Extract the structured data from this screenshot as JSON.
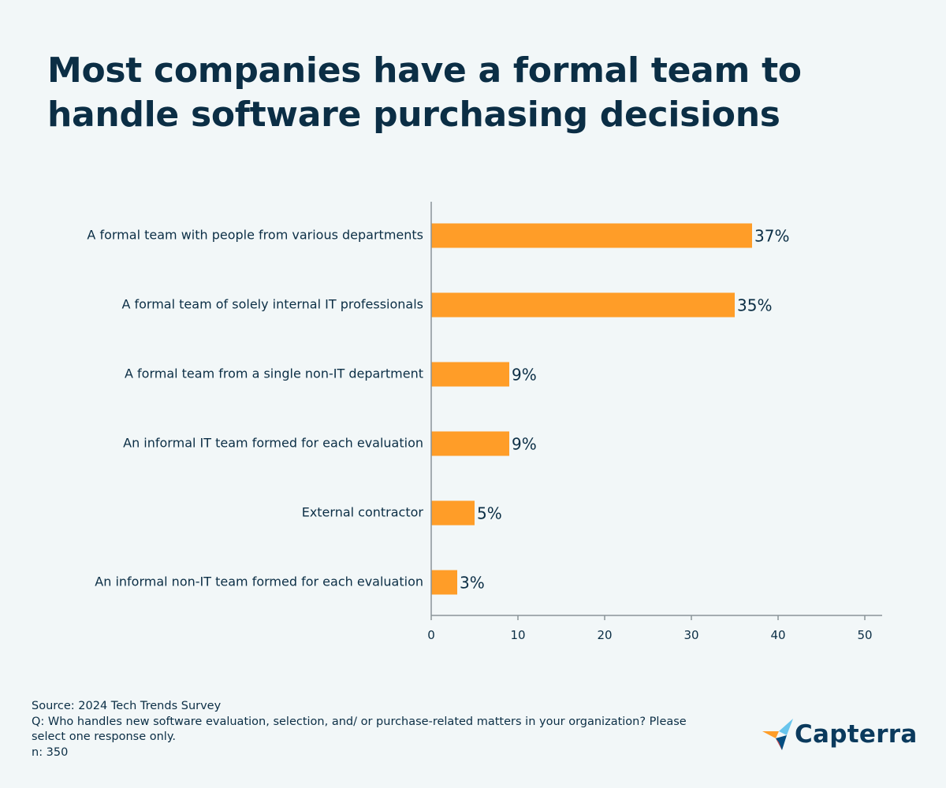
{
  "chart_data": {
    "type": "bar",
    "orientation": "horizontal",
    "title": "Most companies have a formal team to handle software purchasing decisions",
    "categories": [
      "A formal team with people from various departments",
      "A formal team of solely internal IT professionals",
      "A formal team from a single non-IT department",
      "An informal IT team formed for each evaluation",
      "External contractor",
      "An informal non-IT team formed for each evaluation"
    ],
    "values": [
      37,
      35,
      9,
      9,
      5,
      3
    ],
    "value_labels": [
      "37%",
      "35%",
      "9%",
      "9%",
      "5%",
      "3%"
    ],
    "xlim": [
      0,
      50
    ],
    "xticks": [
      0,
      10,
      20,
      30,
      40,
      50
    ],
    "xlabel": "",
    "ylabel": "",
    "grid": false,
    "legend": "none",
    "colors": {
      "bar": "#ff9d28",
      "text": "#0b2e45",
      "axis": "#8a9499"
    }
  },
  "footnote": {
    "source": "Source: 2024 Tech Trends Survey",
    "question": "Q: Who handles new software evaluation, selection, and/ or purchase-related matters in your organization? Please select one response only.",
    "sample": "n: 350"
  },
  "logo": {
    "text": "Capterra",
    "icon": "capterra-logo-icon",
    "colors": [
      "#ff9d28",
      "#68c5ed",
      "#044d80",
      "#e54747"
    ]
  }
}
